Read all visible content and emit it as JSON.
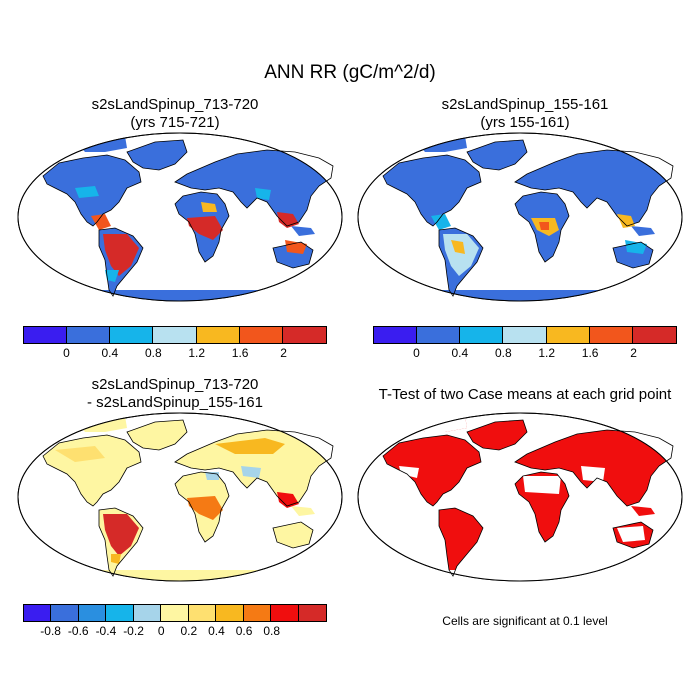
{
  "title": "ANN RR (gC/m^2/d)",
  "panels": [
    {
      "title_line1": "s2sLandSpinup_713-720",
      "title_line2": "(yrs 715-721)"
    },
    {
      "title_line1": "s2sLandSpinup_155-161",
      "title_line2": "(yrs 155-161)"
    },
    {
      "title_line1": "s2sLandSpinup_713-720",
      "title_line2": "- s2sLandSpinup_155-161"
    },
    {
      "title_line1": "T-Test of two Case means at each grid point",
      "title_line2": ""
    }
  ],
  "colorbar_main": {
    "colors": [
      "#3a1df0",
      "#3a6fdc",
      "#16b4ea",
      "#b8e1f0",
      "#f8b820",
      "#f2561c",
      "#d52a28"
    ],
    "ticks": [
      "0",
      "0.4",
      "0.8",
      "1.2",
      "1.6",
      "2"
    ]
  },
  "colorbar_diff": {
    "colors": [
      "#3a1df0",
      "#3a6fdc",
      "#2a8fe0",
      "#16b4ea",
      "#a6d4ea",
      "#fef6a2",
      "#fee070",
      "#f8b820",
      "#f57a14",
      "#f00e0e",
      "#d52a28"
    ],
    "ticks": [
      "-0.8",
      "-0.6",
      "-0.4",
      "-0.2",
      "0",
      "0.2",
      "0.4",
      "0.6",
      "0.8"
    ]
  },
  "note": "Cells are significant at 0.1 level"
}
